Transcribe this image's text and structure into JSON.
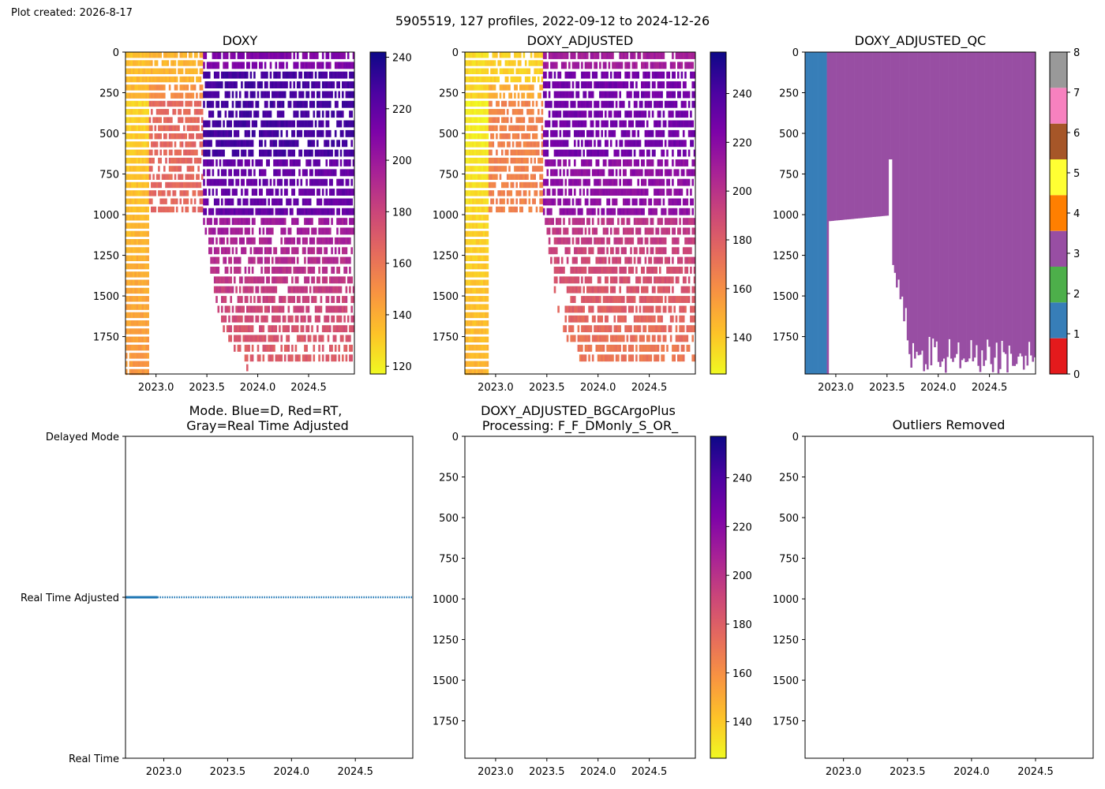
{
  "header": {
    "created": "Plot created: 2026-8-17",
    "suptitle": "5905519, 127 profiles, 2022-09-12 to 2024-12-26"
  },
  "colors": {
    "plasma": [
      "#0d0887",
      "#4b03a1",
      "#7d03a8",
      "#a82296",
      "#cb4679",
      "#e56b5d",
      "#f89441",
      "#fdc328",
      "#f0f921"
    ],
    "qc": [
      "#e41a1c",
      "#377eb8",
      "#4daf4a",
      "#984ea3",
      "#ff7f00",
      "#ffff33",
      "#a65628",
      "#f781bf",
      "#999999"
    ],
    "mode_line": "#1f77b4"
  },
  "chart_data": [
    {
      "type": "heatmap",
      "title": "DOXY",
      "xlabel": "",
      "ylabel": "",
      "xlim": [
        2022.7,
        2024.95
      ],
      "ylim": [
        1980,
        0
      ],
      "xticks": [
        "2023.0",
        "2023.5",
        "2024.0",
        "2024.5"
      ],
      "yticks": [
        "0",
        "250",
        "500",
        "750",
        "1000",
        "1250",
        "1500",
        "1750"
      ],
      "colorbar": {
        "range": [
          117,
          242
        ],
        "ticks": [
          "120",
          "140",
          "160",
          "180",
          "200",
          "220",
          "240"
        ]
      },
      "approx_depth_coverage": [
        {
          "x": 2022.7,
          "max_depth": 1980
        },
        {
          "x": 2022.93,
          "max_depth": 1000
        },
        {
          "x": 2023.45,
          "max_depth": 1000
        },
        {
          "x": 2023.55,
          "max_depth": 1400
        },
        {
          "x": 2023.65,
          "max_depth": 1700
        },
        {
          "x": 2023.9,
          "max_depth": 1950
        },
        {
          "x": 2024.95,
          "max_depth": 1980
        }
      ]
    },
    {
      "type": "heatmap",
      "title": "DOXY_ADJUSTED",
      "xlabel": "",
      "ylabel": "",
      "xlim": [
        2022.7,
        2024.95
      ],
      "ylim": [
        1980,
        0
      ],
      "xticks": [
        "2023.0",
        "2023.5",
        "2024.0",
        "2024.5"
      ],
      "yticks": [
        "0",
        "250",
        "500",
        "750",
        "1000",
        "1250",
        "1500",
        "1750"
      ],
      "colorbar": {
        "range": [
          125,
          257
        ],
        "ticks": [
          "140",
          "160",
          "180",
          "200",
          "220",
          "240"
        ]
      }
    },
    {
      "type": "heatmap",
      "title": "DOXY_ADJUSTED_QC",
      "xlabel": "",
      "ylabel": "",
      "xlim": [
        2022.7,
        2024.95
      ],
      "ylim": [
        1980,
        0
      ],
      "xticks": [
        "2023.0",
        "2023.5",
        "2024.0",
        "2024.5"
      ],
      "yticks": [
        "0",
        "250",
        "500",
        "750",
        "1000",
        "1250",
        "1500",
        "1750"
      ],
      "colorbar": {
        "range": [
          0,
          8
        ],
        "ticks": [
          "0",
          "1",
          "2",
          "3",
          "4",
          "5",
          "6",
          "7",
          "8"
        ]
      },
      "qc_regions": [
        {
          "flag": 1,
          "x_from": 2022.7,
          "x_to": 2022.9
        },
        {
          "flag": 3,
          "x_from": 2022.9,
          "x_to": 2024.95
        }
      ]
    },
    {
      "type": "line",
      "title": "Mode. Blue=D, Red=RT,\nGray=Real Time Adjusted",
      "xlabel": "",
      "ylabel": "",
      "xlim": [
        2022.7,
        2024.95
      ],
      "xticks": [
        "2023.0",
        "2023.5",
        "2024.0",
        "2024.5"
      ],
      "yticks": [
        "Delayed Mode",
        "Real Time Adjusted",
        "Real Time"
      ],
      "series": [
        {
          "x_range": [
            2022.7,
            2024.95
          ],
          "level": "Real Time Adjusted"
        }
      ]
    },
    {
      "type": "heatmap",
      "title": "DOXY_ADJUSTED_BGCArgoPlus\nProcessing: F_F_DMonly_S_OR_",
      "xlabel": "",
      "ylabel": "",
      "xlim": [
        2022.7,
        2024.95
      ],
      "ylim": [
        1980,
        0
      ],
      "xticks": [
        "2023.0",
        "2023.5",
        "2024.0",
        "2024.5"
      ],
      "yticks": [
        "0",
        "250",
        "500",
        "750",
        "1000",
        "1250",
        "1500",
        "1750"
      ],
      "colorbar": {
        "range": [
          125,
          257
        ],
        "ticks": [
          "140",
          "160",
          "180",
          "200",
          "220",
          "240"
        ]
      }
    },
    {
      "type": "scatter",
      "title": "Outliers Removed",
      "xlabel": "",
      "ylabel": "",
      "xlim": [
        2022.7,
        2024.95
      ],
      "ylim": [
        1980,
        0
      ],
      "xticks": [
        "2023.0",
        "2023.5",
        "2024.0",
        "2024.5"
      ],
      "yticks": [
        "0",
        "250",
        "500",
        "750",
        "1000",
        "1250",
        "1500",
        "1750"
      ]
    }
  ]
}
